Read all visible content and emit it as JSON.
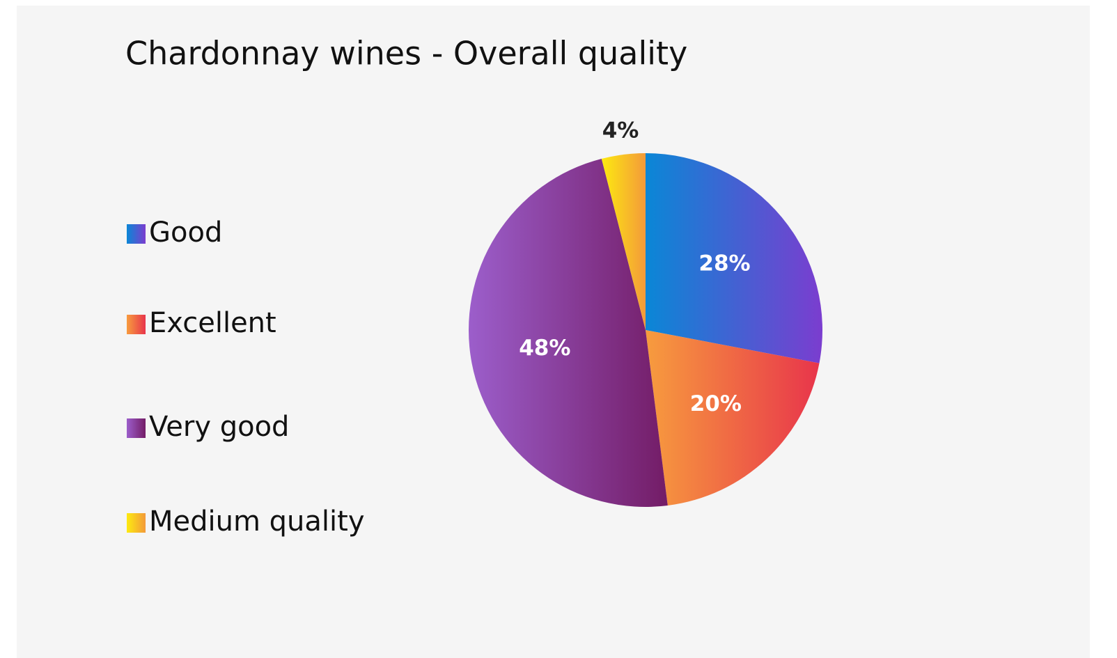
{
  "chart_data": {
    "type": "pie",
    "title": "Chardonnay wines - Overall quality",
    "categories": [
      "Good",
      "Excellent",
      "Very good",
      "Medium quality"
    ],
    "values": [
      28,
      20,
      48,
      4
    ],
    "value_labels": [
      "28%",
      "20%",
      "48%",
      "4%"
    ],
    "colors": [
      [
        "#0a87d6",
        "#7b3dcf"
      ],
      [
        "#f79c3e",
        "#e8354b"
      ],
      [
        "#9c5ecb",
        "#731c66"
      ],
      [
        "#fdea10",
        "#f39a3a"
      ]
    ],
    "legend": "left"
  }
}
